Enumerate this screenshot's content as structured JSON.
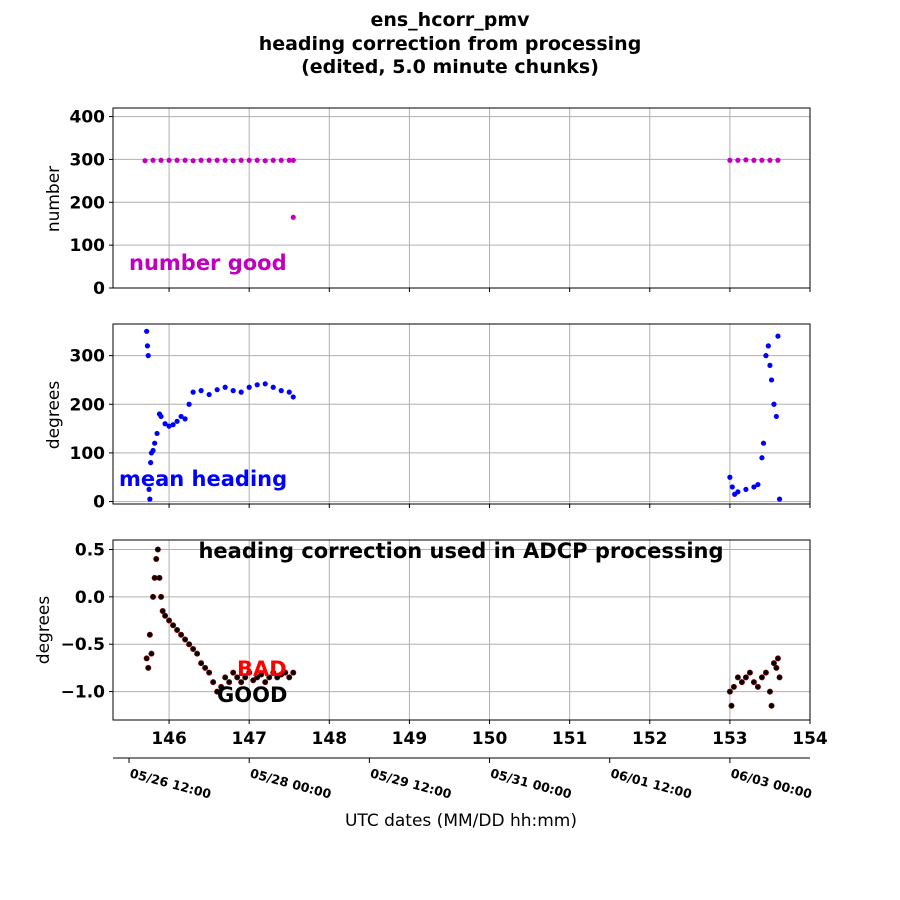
{
  "title_lines": [
    "ens_hcorr_pmv",
    "heading correction from processing",
    "(edited, 5.0 minute chunks)"
  ],
  "colors": {
    "number": "#bf00bf",
    "heading": "#0000ff",
    "correction": "#000000",
    "bad": "#ff0000",
    "good": "#000000",
    "grid": "#b0b0b0"
  },
  "date_axis_label": "UTC dates (MM/DD hh:mm)",
  "date_ticks": [
    {
      "x": 145.5,
      "label": "05/26 12:00"
    },
    {
      "x": 147.0,
      "label": "05/28 00:00"
    },
    {
      "x": 148.5,
      "label": "05/29 12:00"
    },
    {
      "x": 150.0,
      "label": "05/31 00:00"
    },
    {
      "x": 151.5,
      "label": "06/01 12:00"
    },
    {
      "x": 153.0,
      "label": "06/03 00:00"
    }
  ],
  "chart_data": [
    {
      "type": "scatter",
      "ylabel": "number",
      "annotation": "number good",
      "xlim": [
        145.3,
        154.0
      ],
      "ylim": [
        0,
        420
      ],
      "xticks": [
        146,
        147,
        148,
        149,
        150,
        151,
        152,
        153,
        154
      ],
      "yticks": [
        0,
        100,
        200,
        300,
        400
      ],
      "grid": true,
      "series": [
        {
          "color": "#bf00bf",
          "x": [
            145.7,
            145.8,
            145.9,
            146.0,
            146.1,
            146.2,
            146.3,
            146.4,
            146.5,
            146.6,
            146.7,
            146.8,
            146.9,
            147.0,
            147.1,
            147.2,
            147.3,
            147.4,
            147.5,
            147.55,
            147.55,
            153.0,
            153.1,
            153.2,
            153.3,
            153.4,
            153.5,
            153.6
          ],
          "y": [
            297,
            298,
            298,
            298,
            298,
            298,
            297,
            298,
            298,
            298,
            298,
            297,
            298,
            298,
            298,
            297,
            298,
            298,
            298,
            298,
            165,
            298,
            298,
            299,
            298,
            298,
            298,
            298
          ]
        }
      ]
    },
    {
      "type": "scatter",
      "ylabel": "degrees",
      "annotation": "mean heading",
      "xlim": [
        145.3,
        154.0
      ],
      "ylim": [
        -5,
        365
      ],
      "xticks": [
        146,
        147,
        148,
        149,
        150,
        151,
        152,
        153,
        154
      ],
      "yticks": [
        0,
        100,
        200,
        300
      ],
      "grid": true,
      "series": [
        {
          "color": "#0000ff",
          "x": [
            145.72,
            145.73,
            145.74,
            145.75,
            145.76,
            145.77,
            145.78,
            145.8,
            145.82,
            145.85,
            145.88,
            145.9,
            145.95,
            146.0,
            146.05,
            146.1,
            146.15,
            146.2,
            146.25,
            146.3,
            146.4,
            146.5,
            146.6,
            146.7,
            146.8,
            146.9,
            147.0,
            147.1,
            147.2,
            147.3,
            147.4,
            147.5,
            147.55,
            153.0,
            153.03,
            153.06,
            153.1,
            153.2,
            153.3,
            153.35,
            153.4,
            153.42,
            153.45,
            153.48,
            153.5,
            153.52,
            153.55,
            153.58,
            153.6,
            153.62
          ],
          "y": [
            350,
            320,
            300,
            25,
            5,
            80,
            100,
            105,
            120,
            140,
            180,
            175,
            160,
            155,
            158,
            165,
            175,
            170,
            200,
            225,
            228,
            220,
            230,
            235,
            228,
            225,
            235,
            240,
            242,
            235,
            228,
            225,
            215,
            50,
            30,
            15,
            20,
            25,
            30,
            35,
            90,
            120,
            300,
            320,
            280,
            250,
            200,
            175,
            340,
            5
          ]
        }
      ]
    },
    {
      "type": "scatter",
      "title": "heading correction used in ADCP processing",
      "ylabel": "degrees",
      "annotations": [
        "BAD",
        "GOOD"
      ],
      "xlim": [
        145.3,
        154.0
      ],
      "ylim": [
        -1.3,
        0.6
      ],
      "xticks": [
        146,
        147,
        148,
        149,
        150,
        151,
        152,
        153,
        154
      ],
      "yticks": [
        -1.0,
        -0.5,
        0.0,
        0.5
      ],
      "ytick_labels": [
        "−1.0",
        "−0.5",
        "0.0",
        "0.5"
      ],
      "grid": true,
      "series": [
        {
          "name": "BAD",
          "color": "#ff0000",
          "x": [],
          "y": []
        },
        {
          "name": "GOOD",
          "color": "#000000",
          "x": [
            145.72,
            145.74,
            145.76,
            145.78,
            145.8,
            145.82,
            145.84,
            145.86,
            145.88,
            145.9,
            145.92,
            145.95,
            146.0,
            146.05,
            146.1,
            146.15,
            146.2,
            146.25,
            146.3,
            146.35,
            146.4,
            146.45,
            146.5,
            146.55,
            146.6,
            146.65,
            146.7,
            146.75,
            146.8,
            146.85,
            146.9,
            146.95,
            147.0,
            147.05,
            147.1,
            147.15,
            147.2,
            147.25,
            147.3,
            147.35,
            147.4,
            147.45,
            147.5,
            147.55,
            153.0,
            153.02,
            153.05,
            153.1,
            153.15,
            153.2,
            153.25,
            153.3,
            153.35,
            153.4,
            153.45,
            153.5,
            153.52,
            153.55,
            153.58,
            153.6,
            153.62
          ],
          "y": [
            -0.65,
            -0.75,
            -0.4,
            -0.6,
            0.0,
            0.2,
            0.4,
            0.5,
            0.2,
            0.0,
            -0.15,
            -0.2,
            -0.25,
            -0.3,
            -0.35,
            -0.4,
            -0.45,
            -0.5,
            -0.55,
            -0.6,
            -0.7,
            -0.75,
            -0.8,
            -0.9,
            -1.0,
            -0.95,
            -0.85,
            -0.9,
            -0.8,
            -0.85,
            -0.9,
            -0.85,
            -0.8,
            -0.88,
            -0.85,
            -0.82,
            -0.9,
            -0.85,
            -0.8,
            -0.85,
            -0.82,
            -0.8,
            -0.85,
            -0.8,
            -1.0,
            -1.15,
            -0.95,
            -0.85,
            -0.9,
            -0.85,
            -0.8,
            -0.9,
            -0.95,
            -0.85,
            -0.8,
            -1.0,
            -1.15,
            -0.7,
            -0.75,
            -0.65,
            -0.85
          ]
        }
      ]
    }
  ]
}
